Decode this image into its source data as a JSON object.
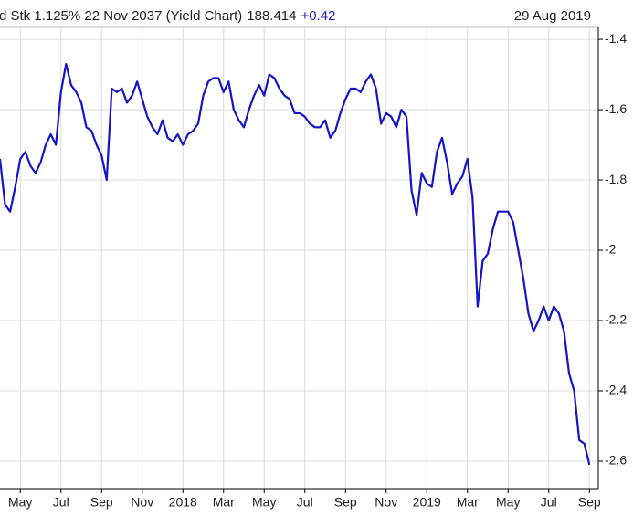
{
  "chart_data": {
    "type": "line",
    "title": "d Stk 1.125% 22 Nov 2037 (Yield Chart)",
    "price": "188.414",
    "change": "+0.42",
    "date": "29 Aug 2019",
    "categories": [
      null,
      null,
      null,
      null,
      "May",
      null,
      null,
      null,
      null,
      null,
      null,
      null,
      "Jul",
      null,
      null,
      null,
      null,
      null,
      null,
      null,
      "Sep",
      null,
      null,
      null,
      null,
      null,
      null,
      null,
      "Nov",
      null,
      null,
      null,
      null,
      null,
      null,
      null,
      "2018",
      null,
      null,
      null,
      null,
      null,
      null,
      null,
      "Mar",
      null,
      null,
      null,
      null,
      null,
      null,
      null,
      "May",
      null,
      null,
      null,
      null,
      null,
      null,
      null,
      "Jul",
      null,
      null,
      null,
      null,
      null,
      null,
      null,
      "Sep",
      null,
      null,
      null,
      null,
      null,
      null,
      null,
      "Nov",
      null,
      null,
      null,
      null,
      null,
      null,
      null,
      "2019",
      null,
      null,
      null,
      null,
      null,
      null,
      null,
      "Mar",
      null,
      null,
      null,
      null,
      null,
      null,
      null,
      "May",
      null,
      null,
      null,
      null,
      null,
      null,
      null,
      "Jul",
      null,
      null,
      null,
      null,
      null,
      null,
      null,
      "Sep"
    ],
    "series": [
      {
        "color": "#1414c8",
        "values": [
          -1.74,
          -1.87,
          -1.89,
          -1.82,
          -1.74,
          -1.72,
          -1.76,
          -1.78,
          -1.75,
          -1.7,
          -1.67,
          -1.7,
          -1.55,
          -1.47,
          -1.53,
          -1.55,
          -1.58,
          -1.65,
          -1.66,
          -1.7,
          -1.73,
          -1.8,
          -1.54,
          -1.55,
          -1.54,
          -1.58,
          -1.56,
          -1.52,
          -1.57,
          -1.62,
          -1.65,
          -1.67,
          -1.63,
          -1.68,
          -1.69,
          -1.67,
          -1.7,
          -1.67,
          -1.66,
          -1.64,
          -1.56,
          -1.52,
          -1.51,
          -1.51,
          -1.55,
          -1.52,
          -1.6,
          -1.63,
          -1.65,
          -1.6,
          -1.56,
          -1.53,
          -1.56,
          -1.5,
          -1.51,
          -1.54,
          -1.56,
          -1.57,
          -1.61,
          -1.61,
          -1.62,
          -1.64,
          -1.65,
          -1.65,
          -1.63,
          -1.68,
          -1.66,
          -1.61,
          -1.57,
          -1.54,
          -1.54,
          -1.55,
          -1.52,
          -1.5,
          -1.54,
          -1.64,
          -1.61,
          -1.62,
          -1.65,
          -1.6,
          -1.62,
          -1.83,
          -1.9,
          -1.78,
          -1.81,
          -1.82,
          -1.72,
          -1.68,
          -1.75,
          -1.84,
          -1.81,
          -1.79,
          -1.74,
          -1.85,
          -2.16,
          -2.03,
          -2.01,
          -1.94,
          -1.89,
          -1.89,
          -1.89,
          -1.92,
          -2.0,
          -2.08,
          -2.18,
          -2.23,
          -2.2,
          -2.16,
          -2.2,
          -2.16,
          -2.18,
          -2.23,
          -2.35,
          -2.4,
          -2.54,
          -2.55,
          -2.61
        ]
      }
    ],
    "ylim": [
      -2.678,
      -1.366
    ],
    "yticks": [
      -1.4,
      -1.6,
      -1.8,
      -2,
      -2.2,
      -2.4,
      -2.6
    ],
    "grid": true
  }
}
